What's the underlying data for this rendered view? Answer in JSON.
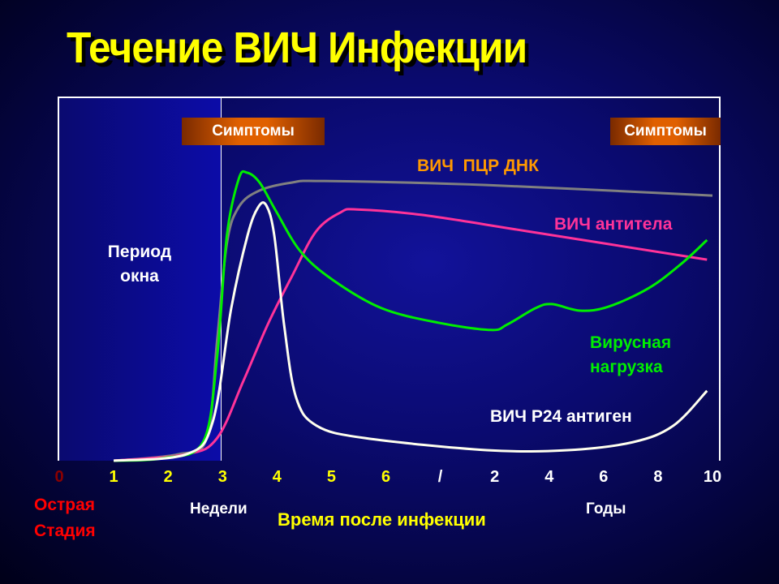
{
  "chart_data": {
    "type": "line",
    "title": "Течение ВИЧ Инфекции",
    "xlabel": "Время после инфекции",
    "x_ticks": [
      "0",
      "1",
      "2",
      "3",
      "4",
      "5",
      "6",
      "/",
      "2",
      "4",
      "6",
      "8",
      "10"
    ],
    "x_tick_colors": [
      "#8b0000",
      "#ffff00",
      "#ffff00",
      "#ffff00",
      "#ffff00",
      "#ffff00",
      "#ffff00",
      "#ffffff",
      "#ffffff",
      "#ffffff",
      "#ffffff",
      "#ffffff",
      "#ffffff"
    ],
    "x_unit_labels": {
      "weeks": "Недели",
      "years": "Годы"
    },
    "stage_label": [
      "Острая",
      "Стадия"
    ],
    "window_period_label": [
      "Период",
      "окна"
    ],
    "window_period_end_tick_index": 3,
    "symptoms_label": "Симптомы",
    "xlim": [
      0,
      12
    ],
    "ylim": [
      0,
      100
    ],
    "grid": false,
    "series": [
      {
        "name": "ВИЧ  ПЦР ДНК",
        "color": "#808080",
        "label_color": "#ff9900",
        "x": [
          1,
          2.19,
          2.71,
          2.9,
          3.08,
          3.3,
          3.68,
          4.28,
          4.87,
          7.85,
          12
        ],
        "y": [
          0,
          1.8,
          6.2,
          33,
          59.7,
          69.7,
          74.2,
          76.4,
          76.8,
          75.7,
          72.8
        ]
      },
      {
        "name": "ВИЧ антитела",
        "color": "#ff3399",
        "label_color": "#ff3399",
        "x": [
          1,
          2.34,
          2.9,
          3.38,
          3.83,
          4.28,
          4.72,
          5.17,
          5.47,
          6.66,
          8.6,
          11.9
        ],
        "y": [
          0,
          1.8,
          6.2,
          21.8,
          37.4,
          50.8,
          63,
          68.2,
          69,
          67.5,
          63,
          55.2
        ]
      },
      {
        "name": "Вирусная нагрузка",
        "name_lines": [
          "Вирусная",
          "нагрузка"
        ],
        "color": "#00ee00",
        "label_color": "#00ee00",
        "x": [
          1,
          1.9,
          2.64,
          2.9,
          3.08,
          3.3,
          3.45,
          3.68,
          3.98,
          4.43,
          5.02,
          5.92,
          6.96,
          7.93,
          8.23,
          8.75,
          9.05,
          9.57,
          10.09,
          10.83,
          11.43,
          11.9
        ],
        "y": [
          0,
          0.7,
          5.1,
          28.5,
          61.9,
          77.5,
          79.1,
          76.4,
          68.6,
          57.5,
          49.7,
          41.9,
          37.9,
          35.9,
          37.4,
          41.9,
          43,
          41.2,
          42.3,
          47.4,
          54.1,
          60.6
        ]
      },
      {
        "name": "ВИЧ Р24 антиген",
        "color": "#ffffee",
        "label_color": "#ffffff",
        "x": [
          1,
          2.34,
          2.82,
          3.16,
          3.46,
          3.65,
          3.8,
          3.95,
          4.13,
          4.35,
          4.73,
          5.62,
          7.85,
          9.34,
          10.54,
          11.28,
          11.9
        ],
        "y": [
          0,
          1.8,
          10.7,
          41.9,
          61.9,
          69.5,
          70.2,
          61.9,
          37.4,
          17.4,
          9.6,
          6.2,
          2.9,
          2.9,
          5.1,
          9.6,
          19.2
        ]
      }
    ]
  }
}
